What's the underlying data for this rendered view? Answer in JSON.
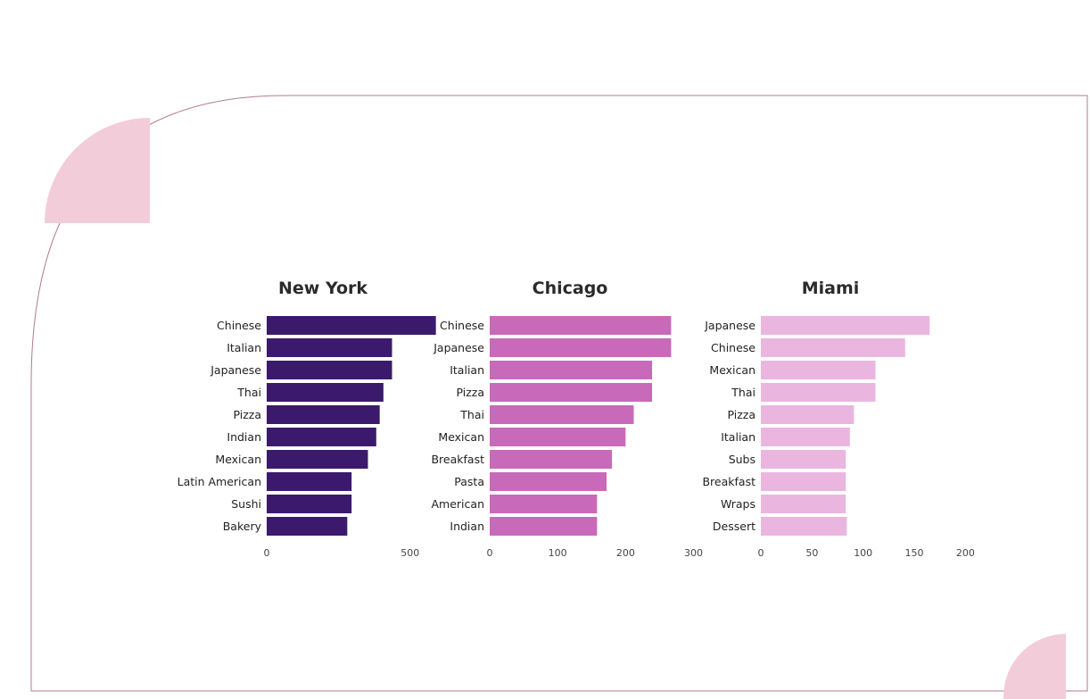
{
  "colors": {
    "new_york": "#3b1a6e",
    "chicago": "#c86ab9",
    "miami": "#eab6df",
    "decoration": "#f2cdd9",
    "border": "#b47a8f"
  },
  "chart_data": [
    {
      "type": "bar",
      "orientation": "horizontal",
      "title": "New York",
      "categories": [
        "Chinese",
        "Italian",
        "Japanese",
        "Thai",
        "Pizza",
        "Indian",
        "Mexican",
        "Latin American",
        "Sushi",
        "Bakery"
      ],
      "values": [
        590,
        437,
        437,
        407,
        394,
        382,
        353,
        296,
        296,
        281
      ],
      "xlim": [
        0,
        600
      ],
      "xticks": [
        0,
        500
      ]
    },
    {
      "type": "bar",
      "orientation": "horizontal",
      "title": "Chicago",
      "categories": [
        "Chinese",
        "Japanese",
        "Italian",
        "Pizza",
        "Thai",
        "Mexican",
        "Breakfast",
        "Pasta",
        "American",
        "Indian"
      ],
      "values": [
        267,
        267,
        239,
        239,
        212,
        200,
        180,
        172,
        158,
        158
      ],
      "xlim": [
        0,
        300
      ],
      "xticks": [
        0,
        100,
        200,
        300
      ]
    },
    {
      "type": "bar",
      "orientation": "horizontal",
      "title": "Miami",
      "categories": [
        "Japanese",
        "Chinese",
        "Mexican",
        "Thai",
        "Pizza",
        "Italian",
        "Subs",
        "Breakfast",
        "Wraps",
        "Dessert"
      ],
      "values": [
        165,
        141,
        112,
        112,
        91,
        87,
        83,
        83,
        83,
        84
      ],
      "xlim": [
        0,
        200
      ],
      "xticks": [
        0,
        50,
        100,
        150,
        200
      ]
    }
  ]
}
